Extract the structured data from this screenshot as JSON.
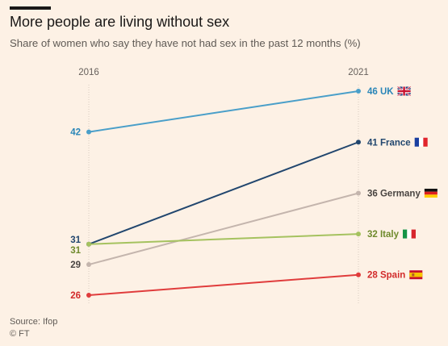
{
  "header": {
    "title": "More people are living without sex",
    "subtitle": "Share of women who say they have not had sex in the past 12 months (%)"
  },
  "footer": {
    "source": "Source: Ifop",
    "credit": "© FT"
  },
  "chart_data": {
    "type": "line",
    "x": [
      "2016",
      "2021"
    ],
    "ylim": [
      26,
      46
    ],
    "grid": false,
    "series": [
      {
        "name": "UK",
        "values": [
          42,
          46
        ],
        "start_label": "42",
        "end_label": "46 UK",
        "color": "#4a9fc9",
        "flag": "uk-flag"
      },
      {
        "name": "France",
        "values": [
          31,
          41
        ],
        "start_label": "31",
        "end_label": "41 France",
        "color": "#21466e",
        "flag": "france-flag"
      },
      {
        "name": "Germany",
        "values": [
          29,
          36
        ],
        "start_label": "29",
        "end_label": "36 Germany",
        "color": "#c4b5ad",
        "flag": "germany-flag"
      },
      {
        "name": "Italy",
        "values": [
          31,
          32
        ],
        "start_label": "31",
        "end_label": "32 Italy",
        "color": "#a5c25f",
        "flag": "italy-flag"
      },
      {
        "name": "Spain",
        "values": [
          26,
          28
        ],
        "start_label": "26",
        "end_label": "28 Spain",
        "color": "#e03c3c",
        "flag": "spain-flag"
      }
    ]
  },
  "label_colors": {
    "UK": "#2a86b8",
    "France": "#21466e",
    "Germany": "#4a4542",
    "Italy": "#6f8a2c",
    "Spain": "#d22b2b"
  }
}
